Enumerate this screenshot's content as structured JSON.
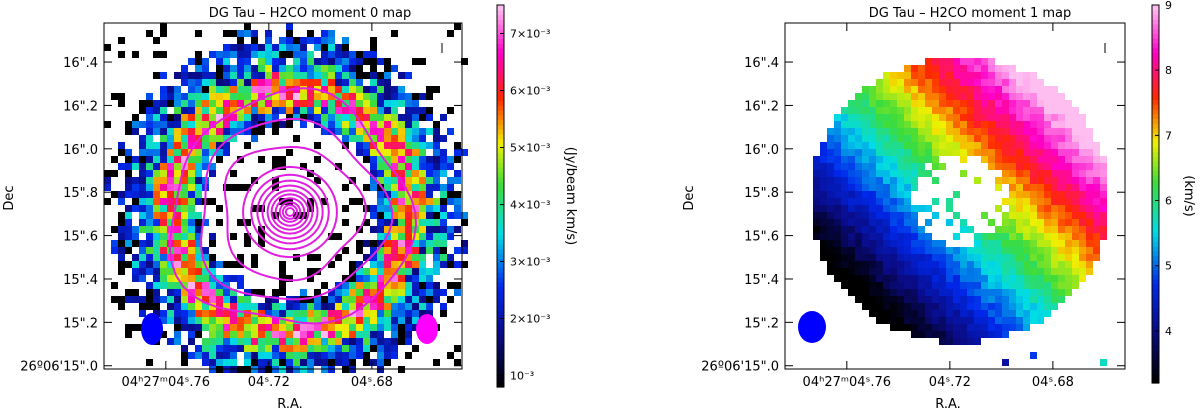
{
  "chart_data": [
    {
      "type": "heatmap",
      "title": "DG Tau – H2CO moment 0 map",
      "xlabel": "R.A.",
      "ylabel": "Dec",
      "x_ticks": [
        {
          "value": 4.76,
          "label": "04ʰ27ᵐ04ˢ.76"
        },
        {
          "value": 4.72,
          "label": "04ˢ.72"
        },
        {
          "value": 4.68,
          "label": "04ˢ.68"
        }
      ],
      "y_ticks": [
        {
          "value": 15.0,
          "label": "26º06'15\".0"
        },
        {
          "value": 15.2,
          "label": "15\".2"
        },
        {
          "value": 15.4,
          "label": "15\".4"
        },
        {
          "value": 15.6,
          "label": "15\".6"
        },
        {
          "value": 15.8,
          "label": "15\".8"
        },
        {
          "value": 16.0,
          "label": "16\".0"
        },
        {
          "value": 16.2,
          "label": "16\".2"
        },
        {
          "value": 16.4,
          "label": "16\".4"
        }
      ],
      "colorbar": {
        "label": "(Jy/beam km/s)",
        "range": [
          0.0008,
          0.0075
        ],
        "ticks": [
          {
            "value": 0.001,
            "label": "10⁻³"
          },
          {
            "value": 0.002,
            "label": "2×10⁻³"
          },
          {
            "value": 0.003,
            "label": "3×10⁻³"
          },
          {
            "value": 0.004,
            "label": "4×10⁻³"
          },
          {
            "value": 0.005,
            "label": "5×10⁻³"
          },
          {
            "value": 0.006,
            "label": "6×10⁻³"
          },
          {
            "value": 0.007,
            "label": "7×10⁻³"
          }
        ],
        "colormap": "black-blue-cyan-green-yellow-red-magenta-pink"
      },
      "ring_center_arcsec": [
        0.0,
        0.0
      ],
      "ring_radius_arcsec": 0.36,
      "contour_color": "#e020e0",
      "beam_colors": [
        "#0000ff",
        "#ff00ff"
      ]
    },
    {
      "type": "heatmap",
      "title": "DG Tau – H2CO moment 1 map",
      "xlabel": "R.A.",
      "ylabel": "Dec",
      "x_ticks": [
        {
          "value": 4.76,
          "label": "04ʰ27ᵐ04ˢ.76"
        },
        {
          "value": 4.72,
          "label": "04ˢ.72"
        },
        {
          "value": 4.68,
          "label": "04ˢ.68"
        }
      ],
      "y_ticks": [
        {
          "value": 15.0,
          "label": "26º06'15\".0"
        },
        {
          "value": 15.2,
          "label": "15\".2"
        },
        {
          "value": 15.4,
          "label": "15\".4"
        },
        {
          "value": 15.6,
          "label": "15\".6"
        },
        {
          "value": 15.8,
          "label": "15\".8"
        },
        {
          "value": 16.0,
          "label": "16\".0"
        },
        {
          "value": 16.2,
          "label": "16\".2"
        },
        {
          "value": 16.4,
          "label": "16\".4"
        }
      ],
      "colorbar": {
        "label": "(km/s)",
        "range": [
          3.2,
          9.0
        ],
        "ticks": [
          {
            "value": 4,
            "label": "4"
          },
          {
            "value": 5,
            "label": "5"
          },
          {
            "value": 6,
            "label": "6"
          },
          {
            "value": 7,
            "label": "7"
          },
          {
            "value": 8,
            "label": "8"
          },
          {
            "value": 9,
            "label": "9"
          }
        ],
        "colormap": "black-blue-cyan-green-yellow-red-magenta-pink"
      },
      "velocity_gradient": {
        "min_kms": 3.6,
        "max_kms": 8.6,
        "direction": "lower-left to upper-right"
      },
      "beam_colors": [
        "#0000ff"
      ]
    }
  ]
}
